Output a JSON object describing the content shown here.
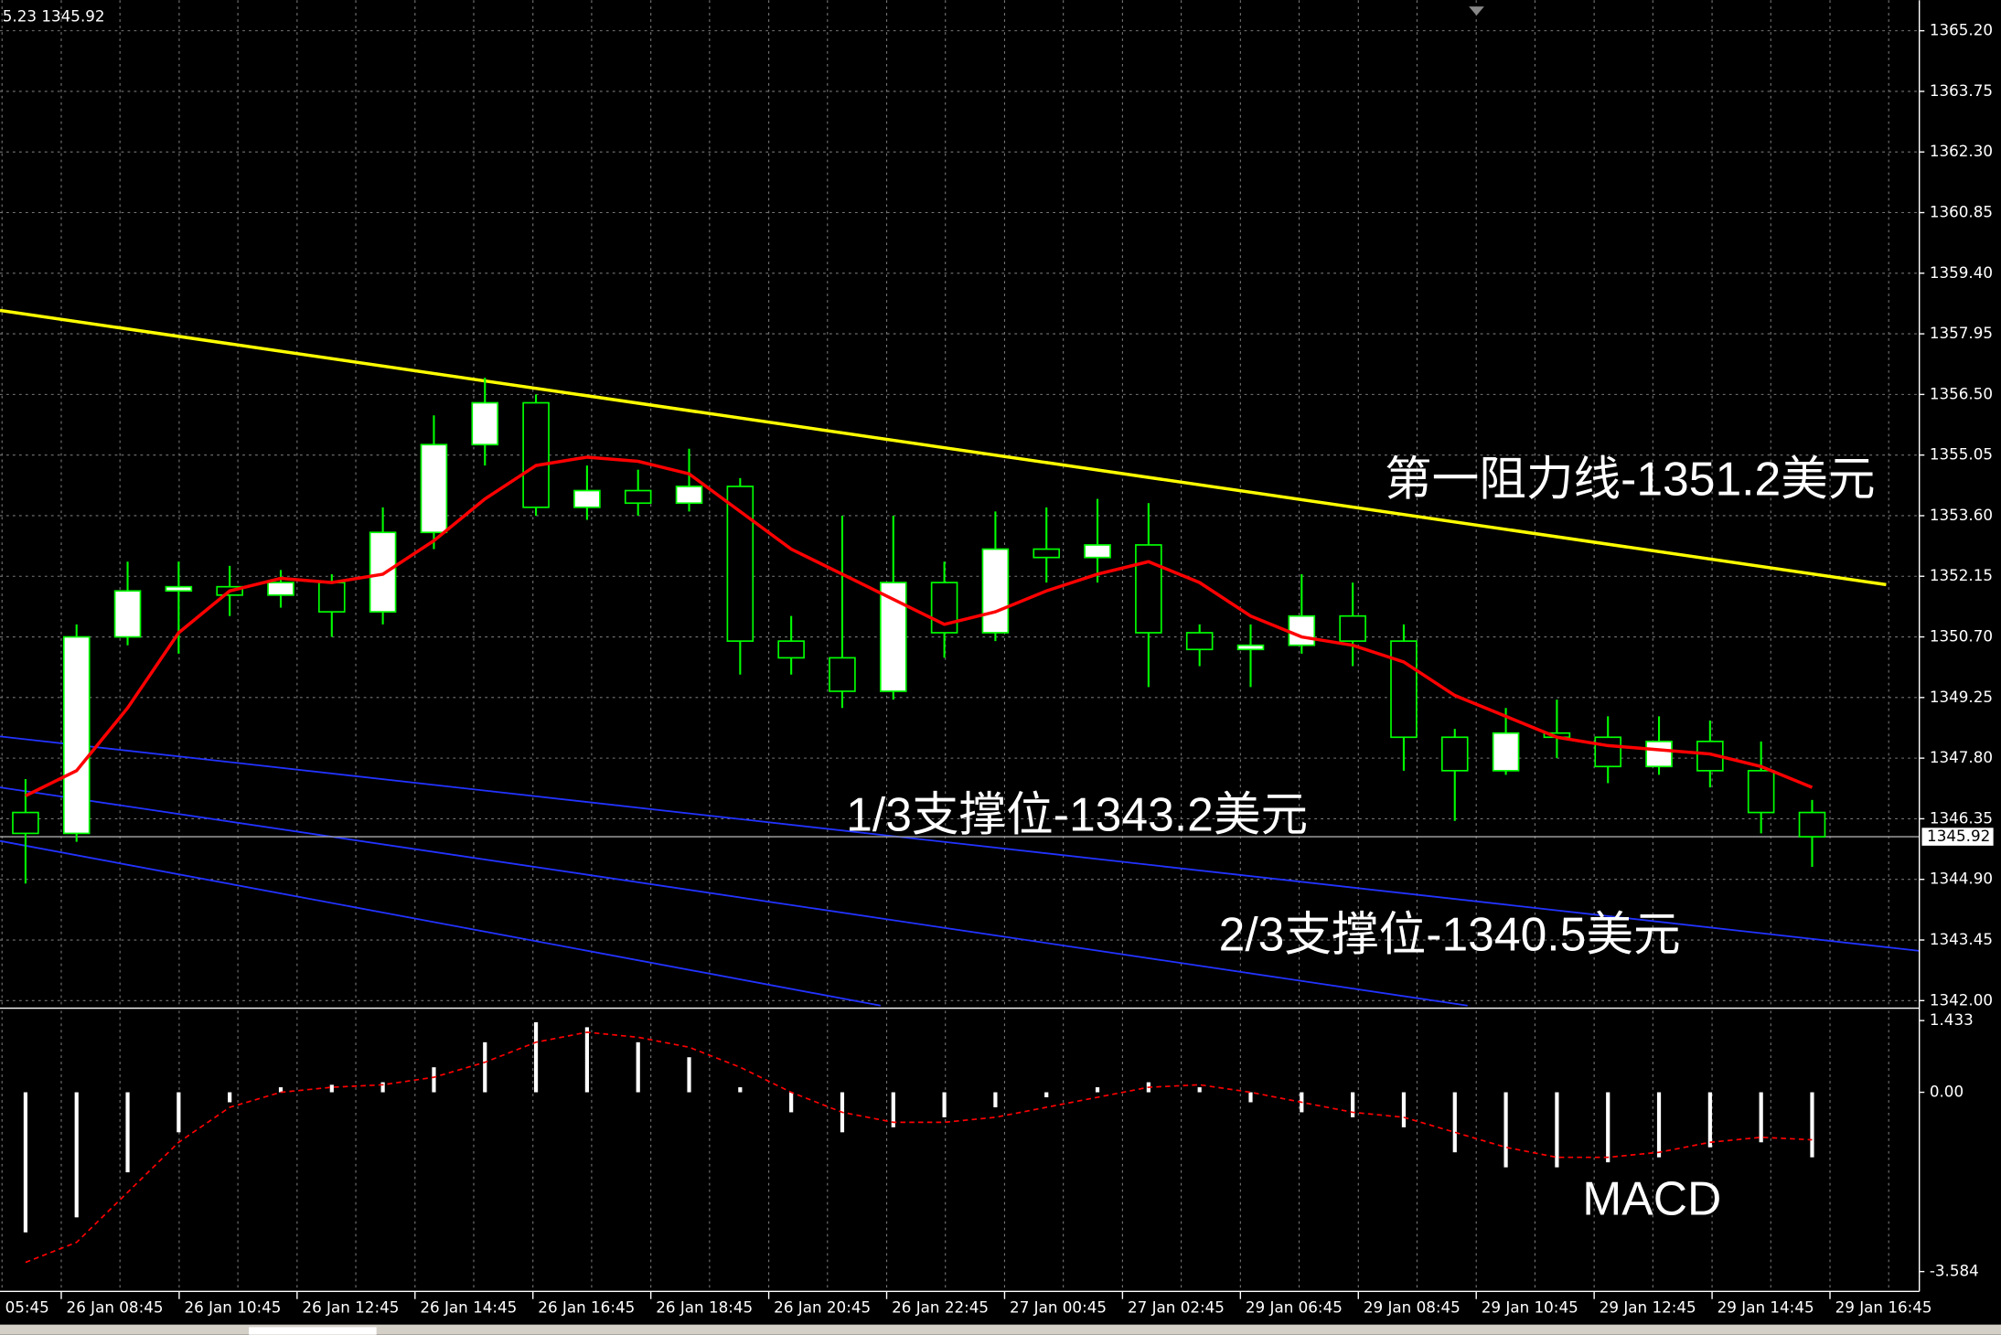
{
  "chart_data": [
    {
      "type": "candlestick",
      "info_text": "5.23 1345.92",
      "ylim": [
        1341.88,
        1365.87
      ],
      "yticks": [
        {
          "value": 1365.2,
          "label": "1365.20"
        },
        1363.75,
        {
          "value": 1362.3,
          "label": "1362.30"
        },
        1360.85,
        {
          "value": 1359.4,
          "label": "1359.40"
        },
        1357.95,
        {
          "value": 1356.5,
          "label": "1356.50"
        },
        1355.05,
        {
          "value": 1353.6,
          "label": "1353.60"
        },
        1352.15,
        {
          "value": 1350.7,
          "label": "1350.70"
        },
        1349.25,
        {
          "value": 1347.8,
          "label": "1347.80"
        },
        1346.35,
        {
          "value": 1344.9,
          "label": "1344.90"
        },
        1343.45,
        {
          "value": 1342.0,
          "label": "1342.00"
        }
      ],
      "xticks": [
        {
          "value": -1.61,
          "label": "05:45"
        },
        {
          "value": 0.7,
          "label": "26 Jan 08:45"
        },
        {
          "value": 3.01,
          "label": "26 Jan 10:45"
        },
        {
          "value": 5.32,
          "label": "26 Jan 12:45"
        },
        {
          "value": 7.63,
          "label": "26 Jan 14:45"
        },
        {
          "value": 9.94,
          "label": "26 Jan 16:45"
        },
        {
          "value": 12.25,
          "label": "26 Jan 18:45"
        },
        {
          "value": 14.56,
          "label": "26 Jan 20:45"
        },
        {
          "value": 16.87,
          "label": "26 Jan 22:45"
        },
        {
          "value": 19.18,
          "label": "27 Jan 00:45"
        },
        {
          "value": 21.49,
          "label": "27 Jan 02:45"
        },
        {
          "value": 23.8,
          "label": "29 Jan 06:45"
        },
        {
          "value": 26.11,
          "label": "29 Jan 08:45"
        },
        {
          "value": 28.42,
          "label": "29 Jan 10:45"
        },
        {
          "value": 30.73,
          "label": "29 Jan 12:45"
        },
        {
          "value": 33.04,
          "label": "29 Jan 14:45"
        },
        {
          "value": 35.35,
          "label": "29 Jan 16:45"
        }
      ],
      "grid": true,
      "up_color": "#ffffff",
      "down_color": "#000000",
      "outline_color": "#00ff00",
      "open": [
        1346.5,
        1346.0,
        1350.7,
        1351.8,
        1351.9,
        1351.7,
        1352.0,
        1351.3,
        1353.2,
        1355.3,
        1356.3,
        1353.8,
        1354.2,
        1353.9,
        1354.3,
        1350.6,
        1350.2,
        1349.4,
        1352.0,
        1350.8,
        1352.8,
        1352.6,
        1352.9,
        1350.8,
        1350.4,
        1350.5,
        1351.2,
        1350.6,
        1348.3,
        1347.5,
        1348.4,
        1348.3,
        1347.6,
        1348.2,
        1347.5,
        1346.5
      ],
      "high": [
        1347.3,
        1351.0,
        1352.5,
        1352.5,
        1352.4,
        1352.3,
        1352.2,
        1353.8,
        1356.0,
        1356.9,
        1356.5,
        1354.8,
        1354.7,
        1355.2,
        1354.5,
        1351.2,
        1353.6,
        1353.6,
        1352.5,
        1353.7,
        1353.8,
        1354.0,
        1353.9,
        1351.0,
        1351.0,
        1352.2,
        1352.0,
        1351.0,
        1348.5,
        1349.0,
        1349.2,
        1348.8,
        1348.8,
        1348.7,
        1348.2,
        1346.8
      ],
      "low": [
        1344.8,
        1345.8,
        1350.5,
        1350.3,
        1351.2,
        1351.4,
        1350.7,
        1351.0,
        1352.8,
        1354.8,
        1353.6,
        1353.5,
        1353.6,
        1353.7,
        1349.8,
        1349.8,
        1349.0,
        1349.2,
        1350.2,
        1350.6,
        1352.0,
        1352.0,
        1349.5,
        1350.0,
        1349.5,
        1350.3,
        1350.0,
        1347.5,
        1346.3,
        1347.4,
        1347.8,
        1347.2,
        1347.4,
        1347.1,
        1346.0,
        1345.2
      ],
      "close": [
        1346.0,
        1350.7,
        1351.8,
        1351.9,
        1351.7,
        1352.0,
        1351.3,
        1353.2,
        1355.3,
        1356.3,
        1353.8,
        1354.2,
        1353.9,
        1354.3,
        1350.6,
        1350.2,
        1349.4,
        1352.0,
        1350.8,
        1352.8,
        1352.6,
        1352.9,
        1350.8,
        1350.4,
        1350.5,
        1351.2,
        1350.6,
        1348.3,
        1347.5,
        1348.4,
        1348.3,
        1347.6,
        1348.2,
        1347.5,
        1346.5,
        1345.92
      ],
      "ma": {
        "color": "#ff0000",
        "values": [
          1346.9,
          1347.5,
          1349.0,
          1350.8,
          1351.8,
          1352.1,
          1352.0,
          1352.2,
          1353.0,
          1354.0,
          1354.8,
          1355.0,
          1354.9,
          1354.6,
          1353.7,
          1352.8,
          1352.2,
          1351.6,
          1351.0,
          1351.3,
          1351.8,
          1352.2,
          1352.5,
          1352.0,
          1351.2,
          1350.7,
          1350.5,
          1350.1,
          1349.3,
          1348.8,
          1348.3,
          1348.1,
          1348.0,
          1347.9,
          1347.6,
          1347.1
        ]
      },
      "last_price": 1345.92,
      "lines": [
        {
          "color": "#ffff00",
          "x": [
            -0.5,
            36.45
          ],
          "y": [
            1358.51,
            1351.95
          ]
        },
        {
          "color": "#2233ff",
          "x": [
            -0.5,
            37.1
          ],
          "y": [
            1348.32,
            1343.19
          ]
        },
        {
          "color": "#2233ff",
          "x": [
            -0.5,
            28.25
          ],
          "y": [
            1347.1,
            1341.88
          ]
        },
        {
          "color": "#2233ff",
          "x": [
            -0.5,
            16.75
          ],
          "y": [
            1345.82,
            1341.88
          ]
        }
      ],
      "annotations": [
        "第一阻力线-1351.2美元",
        "1/3支撑位-1343.2美元",
        "2/3支撑位-1340.5美元"
      ]
    },
    {
      "type": "macd",
      "title": "MACD",
      "ylim": [
        -3.93,
        1.63
      ],
      "yticks": [
        1.433,
        {
          "value": 0,
          "label": "0.00"
        },
        -3.584
      ],
      "histogram_color": "#ffffff",
      "signal_color": "#ff0000",
      "histogram": [
        -2.8,
        -2.5,
        -1.6,
        -0.8,
        -0.2,
        0.1,
        0.15,
        0.2,
        0.5,
        1.0,
        1.4,
        1.3,
        1.0,
        0.7,
        0.1,
        -0.4,
        -0.8,
        -0.7,
        -0.5,
        -0.3,
        -0.1,
        0.1,
        0.2,
        0.1,
        -0.2,
        -0.4,
        -0.5,
        -0.7,
        -1.2,
        -1.5,
        -1.5,
        -1.4,
        -1.3,
        -1.1,
        -1.0,
        -1.3
      ],
      "signal": [
        -3.4,
        -3.0,
        -2.0,
        -1.0,
        -0.3,
        0.0,
        0.1,
        0.15,
        0.3,
        0.6,
        1.0,
        1.2,
        1.1,
        0.9,
        0.5,
        0.0,
        -0.4,
        -0.6,
        -0.6,
        -0.5,
        -0.3,
        -0.1,
        0.1,
        0.15,
        0.0,
        -0.2,
        -0.4,
        -0.5,
        -0.8,
        -1.1,
        -1.3,
        -1.3,
        -1.2,
        -1.0,
        -0.9,
        -0.95
      ]
    }
  ]
}
